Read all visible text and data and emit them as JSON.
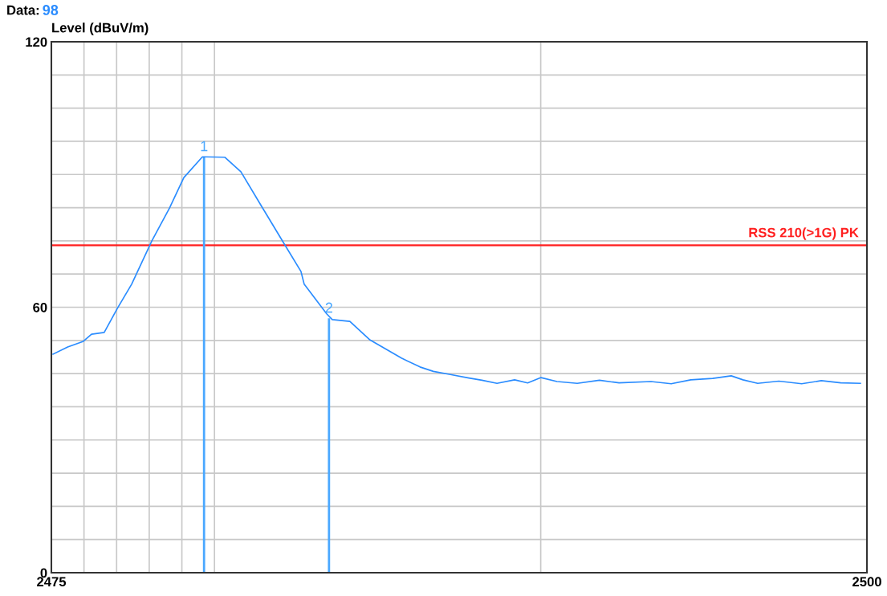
{
  "chart_data": {
    "type": "line",
    "title": "Data:",
    "subtitle": "98",
    "ylabel": "Level (dBuV/m)",
    "series": [
      {
        "color": "#2a8cff",
        "x": [
          2475.05,
          2475.5,
          2475.98,
          2476.23,
          2476.62,
          2477.02,
          2477.46,
          2478.08,
          2478.62,
          2479.06,
          2479.63,
          2480.32,
          2480.81,
          2481.42,
          2482.14,
          2482.65,
          2482.75,
          2483.44,
          2483.61,
          2484.15,
          2484.77,
          2485.73,
          2486.3,
          2486.71,
          2487.23,
          2487.8,
          2488.2,
          2488.66,
          2489.2,
          2489.6,
          2490.01,
          2490.5,
          2491.12,
          2491.8,
          2492.4,
          2493.38,
          2494.0,
          2494.6,
          2495.27,
          2495.84,
          2496.2,
          2496.65,
          2497.3,
          2498.0,
          2498.6,
          2499.2,
          2499.8
        ],
        "values": [
          49.4,
          51.0,
          52.3,
          53.9,
          54.3,
          59.7,
          65.2,
          75.0,
          82.4,
          89.3,
          94.0,
          93.9,
          90.6,
          83.1,
          74.3,
          68.1,
          65.2,
          58.5,
          57.2,
          56.8,
          52.6,
          48.5,
          46.5,
          45.5,
          44.8,
          44.0,
          43.5,
          42.8,
          43.6,
          42.9,
          44.1,
          43.2,
          42.8,
          43.5,
          42.9,
          43.2,
          42.7,
          43.6,
          43.9,
          44.5,
          43.6,
          42.8,
          43.3,
          42.7,
          43.4,
          42.9,
          42.8
        ]
      }
    ],
    "xlim": [
      2475,
      2500
    ],
    "xticks": [
      2475,
      {
        "value": 2476,
        "label": null
      },
      {
        "value": 2477,
        "label": null
      },
      {
        "value": 2478,
        "label": null
      },
      {
        "value": 2479,
        "label": null
      },
      {
        "value": 2480,
        "label": null
      },
      {
        "value": 2490,
        "label": null
      },
      2500
    ],
    "ylim": [
      0,
      120
    ],
    "yticks": [
      0,
      {
        "value": 7.5,
        "label": null
      },
      {
        "value": 15,
        "label": null
      },
      {
        "value": 22.5,
        "label": null
      },
      {
        "value": 30,
        "label": null
      },
      {
        "value": 37.5,
        "label": null
      },
      {
        "value": 45,
        "label": null
      },
      {
        "value": 52.5,
        "label": null
      },
      60,
      {
        "value": 67.5,
        "label": null
      },
      {
        "value": 75,
        "label": null
      },
      {
        "value": 82.5,
        "label": null
      },
      {
        "value": 90,
        "label": null
      },
      {
        "value": 97.5,
        "label": null
      },
      {
        "value": 105,
        "label": null
      },
      {
        "value": 112.5,
        "label": null
      },
      120
    ],
    "grid": true,
    "ref_lines": [
      {
        "axis": "y",
        "value": 74,
        "label": "RSS 210(>1G) PK",
        "color": "#ff2020"
      }
    ],
    "annotations": [
      {
        "text": "1",
        "x": 2479.68,
        "y": 94
      },
      {
        "text": "2",
        "x": 2483.51,
        "y": 57.5
      }
    ]
  }
}
